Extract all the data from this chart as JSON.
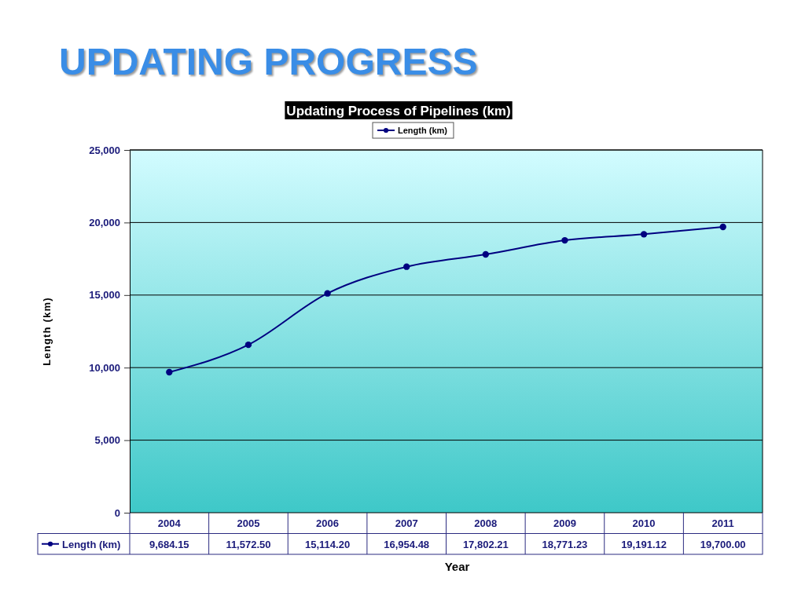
{
  "chart_data": {
    "type": "line",
    "title": "UPDATING PROGRESS",
    "subtitle": "Updating Process of Pipelines (km)",
    "categories": [
      "2004",
      "2005",
      "2006",
      "2007",
      "2008",
      "2009",
      "2010",
      "2011"
    ],
    "series": [
      {
        "name": "Length (km)",
        "color": "#000080",
        "values": [
          9684.15,
          11572.5,
          15114.2,
          16954.48,
          17802.21,
          18771.23,
          19191.12,
          19700.0
        ],
        "value_labels": [
          "9,684.15",
          "11,572.50",
          "15,114.20",
          "16,954.48",
          "17,802.21",
          "18,771.23",
          "19,191.12",
          "19,700.00"
        ]
      }
    ],
    "xlabel": "Year",
    "ylabel": "Length (km)",
    "ylim": [
      0,
      25000
    ],
    "yticks": [
      {
        "value": 0,
        "label": "0"
      },
      {
        "value": 5000,
        "label": "5,000"
      },
      {
        "value": 10000,
        "label": "10,000"
      },
      {
        "value": 15000,
        "label": "15,000"
      },
      {
        "value": 20000,
        "label": "20,000"
      },
      {
        "value": 25000,
        "label": "25,000"
      }
    ],
    "grid": "y",
    "legend": "top",
    "marker": "circle",
    "line_style": "solid"
  }
}
